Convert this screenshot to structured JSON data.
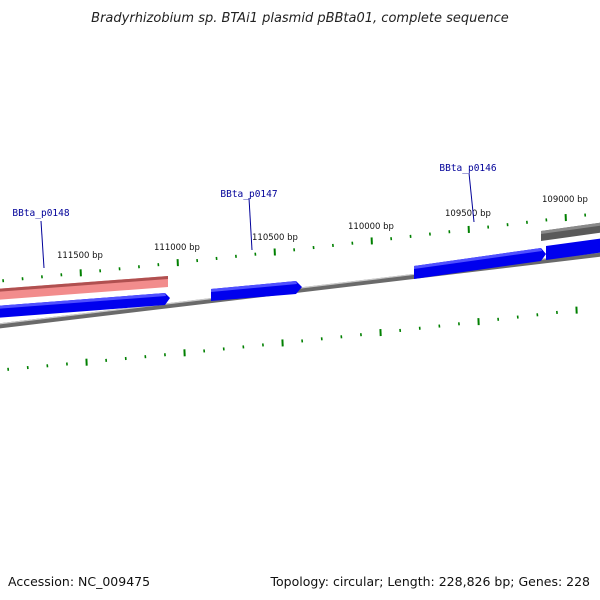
{
  "title": "Bradyrhizobium sp. BTAi1 plasmid pBBta01, complete sequence",
  "footer": {
    "accession": "Accession: NC_009475",
    "summary": "Topology: circular; Length: 228,826 bp; Genes: 228"
  },
  "colors": {
    "forward_gene": "#0000ee",
    "pink_gene": "#f08080",
    "grey_gene": "#666666",
    "backbone": "#808080",
    "tick": "#008000",
    "gene_label": "#000099"
  },
  "genes": [
    {
      "name": "BBta_p0148"
    },
    {
      "name": "BBta_p0147"
    },
    {
      "name": "BBta_p0146"
    }
  ],
  "bp_labels": [
    {
      "label": "111500 bp"
    },
    {
      "label": "111000 bp"
    },
    {
      "label": "110500 bp"
    },
    {
      "label": "110000 bp"
    },
    {
      "label": "109500 bp"
    },
    {
      "label": "109000 bp"
    }
  ]
}
